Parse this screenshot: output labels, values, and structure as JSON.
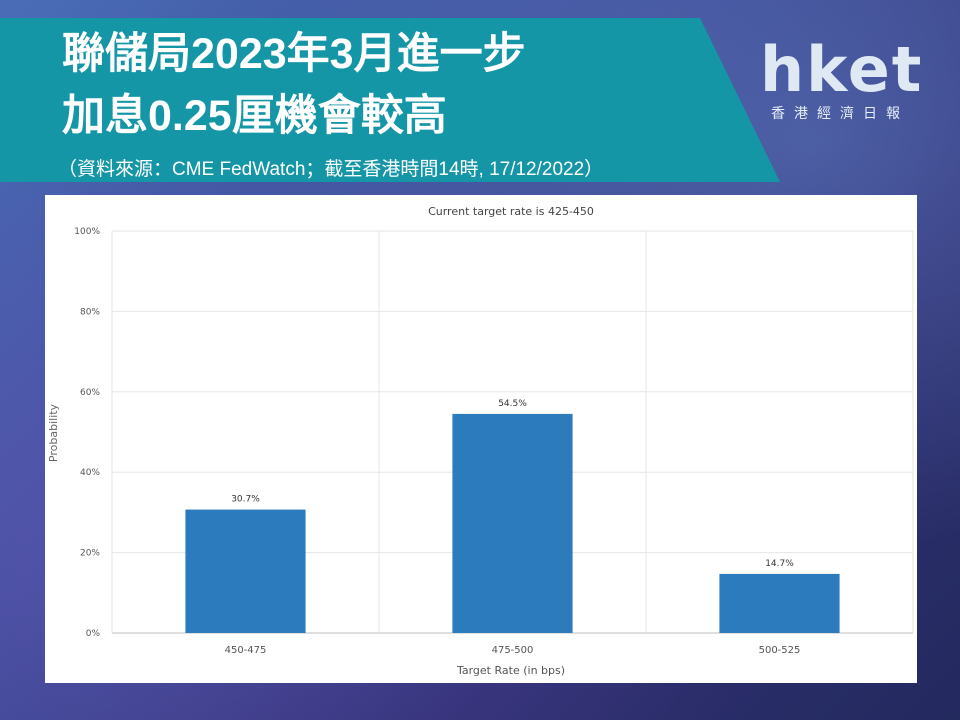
{
  "header": {
    "title_line1": "聯儲局2023年3月進一步",
    "title_line2": "加息0.25厘機會較高",
    "source": "（資料來源：CME FedWatch；截至香港時間14時, 17/12/2022）"
  },
  "logo": {
    "main": "hket",
    "sub": "香港經濟日報"
  },
  "colors": {
    "banner": "#1596a6",
    "bar": "#2b7bbd"
  },
  "chart_data": {
    "type": "bar",
    "title": "Current target rate is 425-450",
    "xlabel": "Target Rate (in bps)",
    "ylabel": "Probability",
    "categories": [
      "450-475",
      "475-500",
      "500-525"
    ],
    "values": [
      30.7,
      54.5,
      14.7
    ],
    "data_labels": [
      "30.7%",
      "54.5%",
      "14.7%"
    ],
    "ylim": [
      0,
      100
    ],
    "yticks": [
      "0%",
      "20%",
      "40%",
      "60%",
      "80%",
      "100%"
    ],
    "grid": true,
    "legend": "none"
  }
}
